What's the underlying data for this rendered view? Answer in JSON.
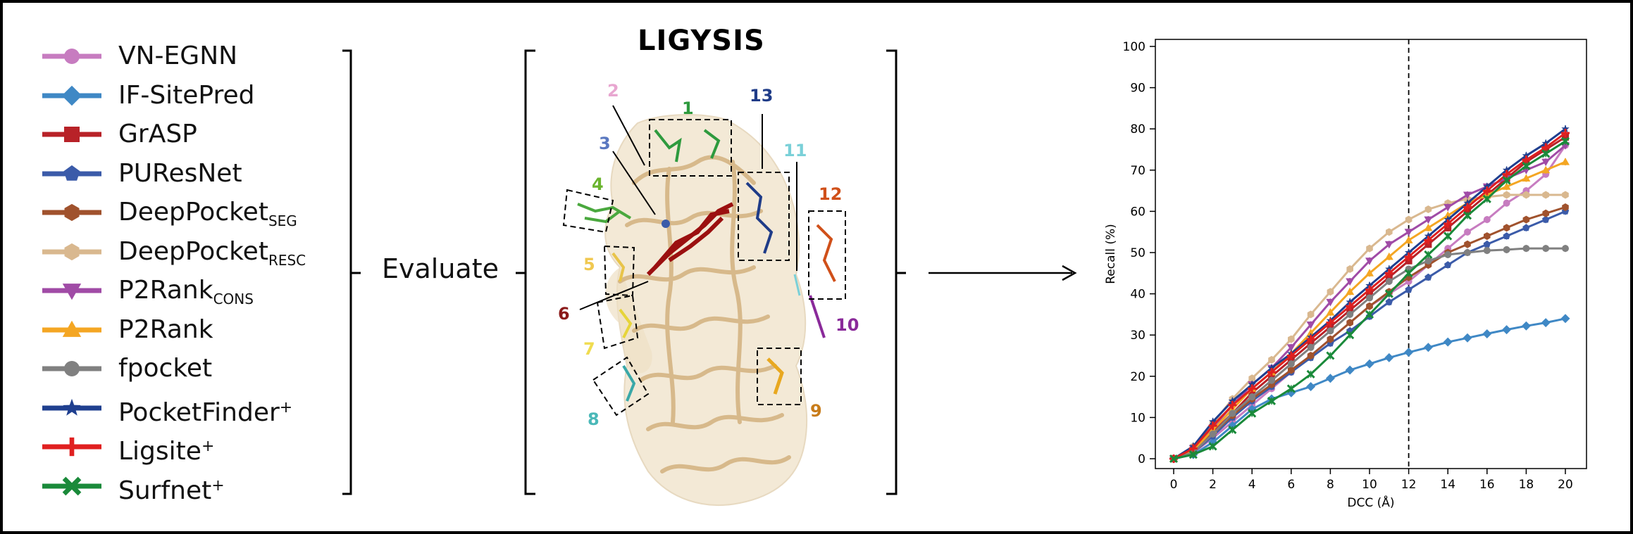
{
  "legend": {
    "items": [
      {
        "name": "VN-EGNN",
        "sub": "",
        "sup": "",
        "color": "#c77cc0",
        "marker": "circle"
      },
      {
        "name": "IF-SitePred",
        "sub": "",
        "sup": "",
        "color": "#3f88c5",
        "marker": "diamond"
      },
      {
        "name": "GrASP",
        "sub": "",
        "sup": "",
        "color": "#b82228",
        "marker": "square"
      },
      {
        "name": "PUResNet",
        "sub": "",
        "sup": "",
        "color": "#3b5ba9",
        "marker": "pentagon"
      },
      {
        "name": "DeepPocket",
        "sub": "SEG",
        "sup": "",
        "color": "#a0522d",
        "marker": "hexagon"
      },
      {
        "name": "DeepPocket",
        "sub": "RESC",
        "sup": "",
        "color": "#d9b88f",
        "marker": "hexagon"
      },
      {
        "name": "P2Rank",
        "sub": "CONS",
        "sup": "",
        "color": "#a04ba6",
        "marker": "triangle-down"
      },
      {
        "name": "P2Rank",
        "sub": "",
        "sup": "",
        "color": "#f4a623",
        "marker": "triangle-up"
      },
      {
        "name": "fpocket",
        "sub": "",
        "sup": "",
        "color": "#808080",
        "marker": "circle"
      },
      {
        "name": "PocketFinder",
        "sub": "",
        "sup": "+",
        "color": "#1f3f8f",
        "marker": "star"
      },
      {
        "name": "Ligsite",
        "sub": "",
        "sup": "+",
        "color": "#e02020",
        "marker": "plus"
      },
      {
        "name": "Surfnet",
        "sub": "",
        "sup": "+",
        "color": "#1a8a3a",
        "marker": "x"
      }
    ]
  },
  "evaluate_label": "Evaluate",
  "structure": {
    "title": "LIGYSIS",
    "site_labels": [
      {
        "text": "1",
        "color": "#2e9a3e"
      },
      {
        "text": "2",
        "color": "#e8a6d0"
      },
      {
        "text": "3",
        "color": "#5a78c0"
      },
      {
        "text": "4",
        "color": "#6ab42e"
      },
      {
        "text": "5",
        "color": "#f0c850"
      },
      {
        "text": "6",
        "color": "#8b1a1a"
      },
      {
        "text": "7",
        "color": "#f0dc50"
      },
      {
        "text": "8",
        "color": "#4ab8b8"
      },
      {
        "text": "9",
        "color": "#c87c1a"
      },
      {
        "text": "10",
        "color": "#8a2a9a"
      },
      {
        "text": "11",
        "color": "#7ad0d8"
      },
      {
        "text": "12",
        "color": "#d0501a"
      },
      {
        "text": "13",
        "color": "#1f3c88"
      }
    ]
  },
  "chart_data": {
    "type": "line",
    "xlabel": "DCC (Å)",
    "ylabel": "Recall (%)",
    "xlim": [
      0,
      20
    ],
    "ylim": [
      0,
      100
    ],
    "xticks": [
      0,
      2,
      4,
      6,
      8,
      10,
      12,
      14,
      16,
      18,
      20
    ],
    "yticks": [
      0,
      10,
      20,
      30,
      40,
      50,
      60,
      70,
      80,
      90,
      100
    ],
    "vline_x": 12,
    "grid": false,
    "x": [
      0,
      1,
      2,
      3,
      4,
      5,
      6,
      7,
      8,
      9,
      10,
      11,
      12,
      13,
      14,
      15,
      16,
      17,
      18,
      19,
      20
    ],
    "series": [
      {
        "name": "VN-EGNN",
        "color": "#c77cc0",
        "marker": "circle",
        "values": [
          0,
          1.5,
          5,
          9,
          13,
          17,
          21,
          25,
          29,
          33,
          37,
          40,
          43,
          47,
          51,
          55,
          58,
          62,
          65,
          69,
          76
        ]
      },
      {
        "name": "IF-SitePred",
        "color": "#3f88c5",
        "marker": "diamond",
        "values": [
          0,
          1,
          4,
          8,
          12,
          14.5,
          16,
          17.5,
          19.5,
          21.5,
          23,
          24.5,
          25.8,
          27,
          28.3,
          29.3,
          30.3,
          31.3,
          32.2,
          33,
          34
        ]
      },
      {
        "name": "GrASP",
        "color": "#b82228",
        "marker": "square",
        "values": [
          0,
          2,
          6.5,
          11,
          16,
          20,
          24,
          28,
          32,
          36,
          40,
          44,
          48,
          52,
          56,
          60,
          64,
          68,
          72,
          75,
          78
        ]
      },
      {
        "name": "PUResNet",
        "color": "#3b5ba9",
        "marker": "pentagon",
        "values": [
          0,
          1.5,
          5.5,
          10,
          14,
          17.5,
          21,
          24.5,
          28,
          31,
          34.5,
          38,
          41,
          44,
          47,
          50,
          52,
          54,
          56,
          58,
          60
        ]
      },
      {
        "name": "DeepPocket SEG",
        "color": "#a0522d",
        "marker": "hexagon",
        "values": [
          0,
          1.5,
          6,
          10.5,
          14.5,
          18,
          21.5,
          25,
          29,
          33,
          37,
          40.5,
          44,
          47,
          50,
          52,
          54,
          56,
          58,
          59.5,
          61
        ]
      },
      {
        "name": "DeepPocket RESC",
        "color": "#d9b88f",
        "marker": "hexagon",
        "values": [
          0,
          3,
          8.5,
          14.5,
          19.5,
          24,
          29,
          35,
          40.5,
          46,
          51,
          55,
          58,
          60.5,
          62,
          63,
          63.5,
          64,
          64,
          64,
          64
        ]
      },
      {
        "name": "P2Rank CONS",
        "color": "#a04ba6",
        "marker": "triangle-down",
        "values": [
          0,
          2.5,
          7.5,
          13,
          18,
          22,
          27,
          32.5,
          38,
          43,
          48,
          52,
          55,
          58,
          61,
          64,
          66,
          68,
          70,
          72,
          76
        ]
      },
      {
        "name": "P2Rank",
        "color": "#f4a623",
        "marker": "triangle-up",
        "values": [
          0,
          2,
          7,
          12,
          17,
          21,
          25.5,
          30.5,
          35.5,
          40.5,
          45,
          49,
          53,
          56,
          59,
          62,
          64,
          66,
          68,
          70,
          72
        ]
      },
      {
        "name": "fpocket",
        "color": "#808080",
        "marker": "circle",
        "values": [
          0,
          1.5,
          6,
          11,
          15,
          19,
          23,
          27,
          31,
          35,
          39,
          43,
          46,
          48,
          49.5,
          50,
          50.5,
          50.7,
          51,
          51,
          51
        ]
      },
      {
        "name": "PocketFinder+",
        "color": "#1f3f8f",
        "marker": "star",
        "values": [
          0,
          3,
          9,
          14,
          18,
          22,
          25.5,
          29.5,
          33.5,
          38,
          42,
          46,
          50,
          54,
          58,
          62,
          66,
          70,
          73.5,
          76.5,
          80
        ]
      },
      {
        "name": "Ligsite+",
        "color": "#e02020",
        "marker": "plus",
        "values": [
          0,
          2.5,
          8,
          13,
          17,
          21,
          25,
          29,
          33,
          37,
          41,
          45,
          49,
          53,
          57,
          61,
          65,
          69,
          72.5,
          75.5,
          79
        ]
      },
      {
        "name": "Surfnet+",
        "color": "#1a8a3a",
        "marker": "x",
        "values": [
          0,
          1,
          3,
          7,
          11,
          14,
          17,
          20.5,
          25,
          30,
          35,
          40,
          45,
          49.5,
          54,
          59,
          63,
          67.5,
          71,
          74,
          77
        ]
      }
    ]
  }
}
